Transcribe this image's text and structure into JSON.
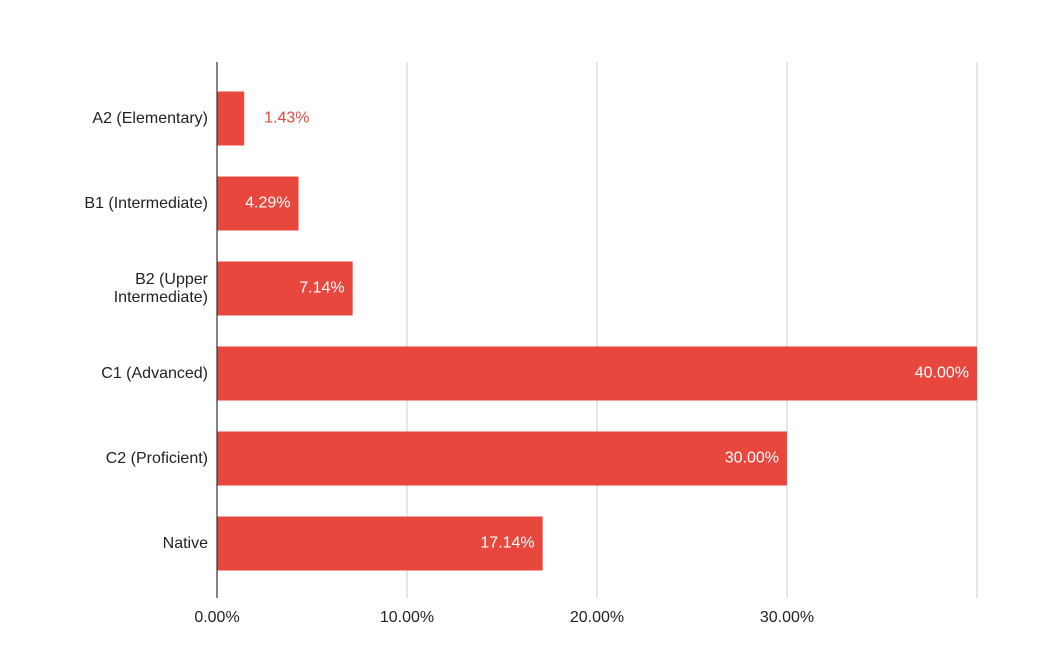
{
  "chart_data": {
    "type": "bar",
    "orientation": "horizontal",
    "categories": [
      "A2 (Elementary)",
      "B1 (Intermediate)",
      "B2 (Upper Intermediate)",
      "C1 (Advanced)",
      "C2 (Proficient)",
      "Native"
    ],
    "values": [
      1.43,
      4.29,
      7.14,
      40,
      30,
      17.14
    ],
    "value_labels": [
      "1.43%",
      "4.29%",
      "7.14%",
      "40.00%",
      "30.00%",
      "17.14%"
    ],
    "color": "#e8473e",
    "xlim": [
      0,
      40
    ],
    "xticks": [
      {
        "value": 0,
        "label": "0.00%"
      },
      {
        "value": 10,
        "label": "10.00%"
      },
      {
        "value": 20,
        "label": "20.00%"
      },
      {
        "value": 30,
        "label": "30.00%"
      }
    ],
    "grid": true
  }
}
